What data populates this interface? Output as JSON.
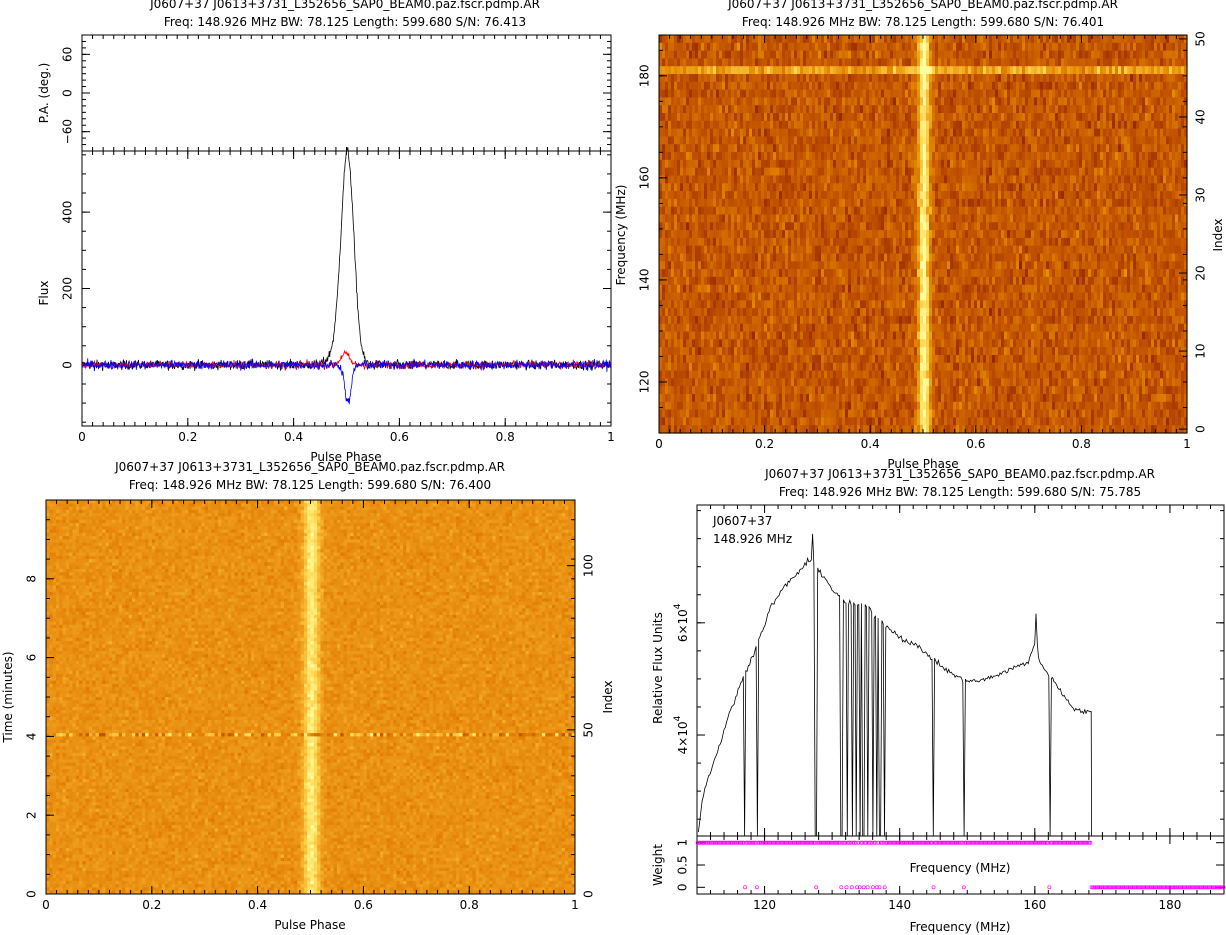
{
  "chart_data": [
    {
      "id": "profile",
      "type": "line",
      "title": "J0607+37  J0613+3731_L352656_SAP0_BEAM0.paz.fscr.pdmp.AR",
      "subtitle": "Freq: 148.926 MHz BW: 78.125 Length: 599.680 S/N: 76.413",
      "top_panel": {
        "ylabel": "P.A. (deg.)",
        "ylim": [
          -90,
          90
        ],
        "yticks": [
          "−60",
          "0",
          "60"
        ],
        "yticks_values": [
          -60,
          0,
          60
        ]
      },
      "bottom_panel": {
        "xlabel": "Pulse Phase",
        "ylabel": "Flux",
        "xlim": [
          0,
          1
        ],
        "ylim": [
          -160,
          560
        ],
        "xticks": [
          "0",
          "0.2",
          "0.4",
          "0.6",
          "0.8",
          "1"
        ],
        "yticks": [
          "0",
          "200",
          "400"
        ]
      },
      "series": [
        {
          "color": "#000000",
          "peak_x": 0.502,
          "peak_y": 527,
          "width": 0.012,
          "noise": 12
        },
        {
          "color": "#ff0000",
          "peak_x": 0.497,
          "peak_y": 30,
          "width": 0.008,
          "noise": 10
        },
        {
          "color": "#0000ff",
          "peak_x": 0.503,
          "peak_y": -100,
          "width": 0.006,
          "noise": 12
        }
      ]
    },
    {
      "id": "phase_frequency",
      "type": "heatmap",
      "title": "J0607+37  J0613+3731_L352656_SAP0_BEAM0.paz.fscr.pdmp.AR",
      "subtitle": "Freq: 148.926 MHz BW: 78.125 Length: 599.680 S/N: 76.401",
      "xlabel": "Pulse Phase",
      "ylabel": "Frequency (MHz)",
      "ylabel_right": "Index",
      "xlim": [
        0,
        1
      ],
      "ylim": [
        110,
        188
      ],
      "xticks": [
        "0",
        "0.2",
        "0.4",
        "0.6",
        "0.8",
        "1"
      ],
      "yticks": [
        "120",
        "140",
        "160",
        "180"
      ],
      "yticks_right": [
        "0",
        "10",
        "20",
        "30",
        "40",
        "50"
      ],
      "pulse_phase": 0.502,
      "colormap": [
        "#3d0000",
        "#8a1e00",
        "#c25200",
        "#e68a00",
        "#ffd24a",
        "#ffffa0"
      ]
    },
    {
      "id": "phase_time",
      "type": "heatmap",
      "title": "J0607+37  J0613+3731_L352656_SAP0_BEAM0.paz.fscr.pdmp.AR",
      "subtitle": "Freq: 148.926 MHz BW: 78.125 Length: 599.680 S/N: 76.400",
      "xlabel": "Pulse Phase",
      "ylabel": "Time (minutes)",
      "ylabel_right": "Index",
      "xlim": [
        0,
        1
      ],
      "ylim": [
        0,
        10
      ],
      "xticks": [
        "0",
        "0.2",
        "0.4",
        "0.6",
        "0.8",
        "1"
      ],
      "yticks": [
        "0",
        "2",
        "4",
        "6",
        "8"
      ],
      "yticks_right": [
        "0",
        "50",
        "100"
      ],
      "pulse_phase": 0.502,
      "artifact_time_min": 4.1,
      "colormap": [
        "#c25200",
        "#e07a00",
        "#f0a020",
        "#ffd24a",
        "#ffffa0"
      ]
    },
    {
      "id": "bandpass",
      "type": "line",
      "title": "J0607+37  J0613+3731_L352656_SAP0_BEAM0.paz.fscr.pdmp.AR",
      "subtitle": "Freq: 148.926 MHz BW: 78.125 Length: 599.680 S/N: 75.785",
      "annotation": [
        "J0607+37",
        "148.926 MHz"
      ],
      "xlabel": "Frequency (MHz)",
      "ylabel": "Relative Flux Units",
      "xlim": [
        110,
        188
      ],
      "ylim": [
        22000,
        81000
      ],
      "xticks": [
        "120",
        "140",
        "160",
        "180"
      ],
      "yticks": [
        {
          "mantissa": "4×10",
          "exp": "4",
          "value": 40000
        },
        {
          "mantissa": "6×10",
          "exp": "4",
          "value": 60000
        }
      ],
      "series": [
        {
          "color": "#000000",
          "x": [
            110.2,
            111,
            113,
            115,
            116.8,
            119,
            121,
            123,
            125,
            126.5,
            127.5,
            130,
            132,
            135,
            137,
            140,
            143,
            145,
            147,
            149,
            151,
            153,
            155,
            157,
            159,
            160.2,
            160.8,
            162,
            164,
            166,
            168.4
          ],
          "y": [
            23000,
            30000,
            37000,
            44500,
            50000,
            56500,
            63000,
            66500,
            69000,
            71000,
            70500,
            66000,
            63500,
            63000,
            60500,
            57500,
            55500,
            53500,
            51500,
            50000,
            49500,
            50000,
            51000,
            52000,
            53000,
            57000,
            52500,
            51000,
            47500,
            44500,
            44000
          ]
        }
      ],
      "spikes": [
        127.1,
        160.2
      ],
      "flag_dips": [
        117.1,
        118.9,
        127.6,
        131.4,
        132.2,
        133.0,
        133.6,
        134.1,
        134.6,
        135.3,
        136.0,
        136.6,
        137.1,
        137.7,
        145.0,
        149.5,
        162.2
      ],
      "weight_panel": {
        "ylabel": "Weight",
        "xlabel": "Frequency (MHz)",
        "yticks": [
          "0",
          "0.5",
          "1"
        ],
        "ylim": [
          -0.15,
          1.15
        ],
        "marker_color": "#ff00ff",
        "band_end": 168.4,
        "flagged_x": [
          117.1,
          118.9,
          127.6,
          131.4,
          132.2,
          133.0,
          133.6,
          134.1,
          134.6,
          135.3,
          136.0,
          136.6,
          137.1,
          137.7,
          145.0,
          149.5,
          162.2
        ]
      }
    }
  ]
}
